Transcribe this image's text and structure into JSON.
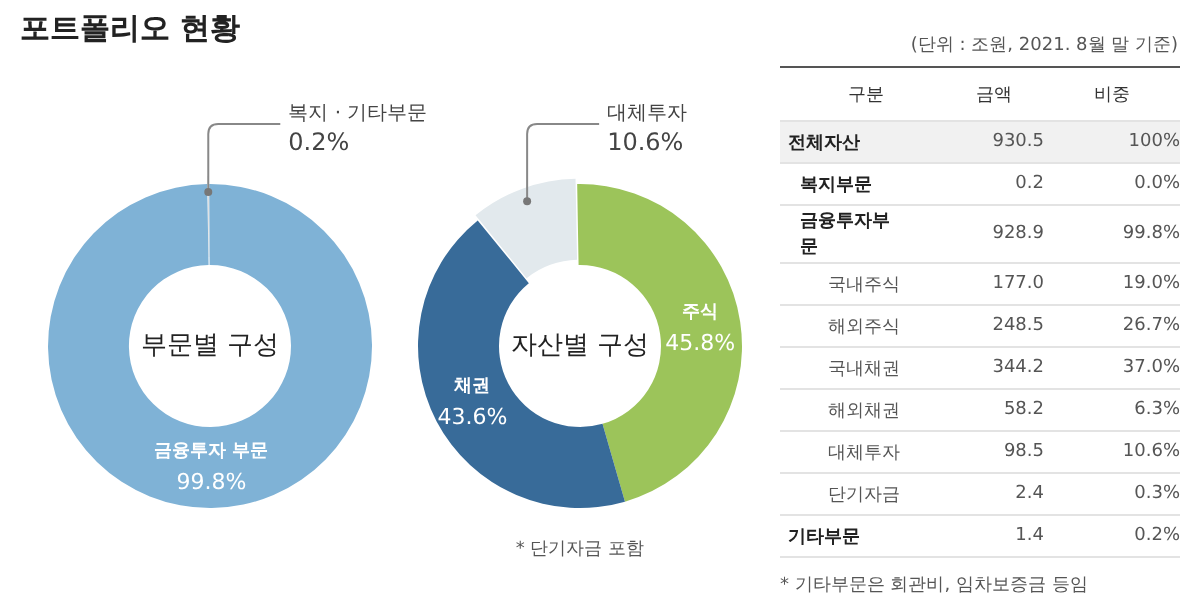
{
  "chart_data": [
    {
      "type": "donut",
      "title": "포트폴리오 현황",
      "subtitle": "부문별 구성",
      "categories": [
        "복지 · 기타부문",
        "금융투자 부문"
      ],
      "values": [
        0.2,
        99.8
      ],
      "colors": [
        "#cfd2d4",
        "#7fb2d6"
      ],
      "value_labels": [
        "0.2%",
        "99.8%"
      ],
      "legend": false
    },
    {
      "type": "donut",
      "subtitle": "자산별 구성",
      "categories": [
        "주식",
        "채권",
        "대체투자"
      ],
      "values": [
        45.8,
        43.6,
        10.6
      ],
      "colors": [
        "#9cc45a",
        "#386b99",
        "#e2e9ed"
      ],
      "value_labels": [
        "45.8%",
        "43.6%",
        "10.6%"
      ],
      "legend": false,
      "annotations": [
        "* 단기자금 포함"
      ]
    },
    {
      "type": "other",
      "legend_title": "구분",
      "categories": [
        "전체자산",
        "복지부문",
        "금융투자부문",
        "국내주식",
        "해외주식",
        "국내채권",
        "해외채권",
        "대체투자",
        "단기자금",
        "기타부문"
      ],
      "series": [
        {
          "name": "금액",
          "values": [
            930.5,
            0.2,
            928.9,
            177.0,
            248.5,
            344.2,
            58.2,
            98.5,
            2.4,
            1.4
          ],
          "value_labels": [
            "930.5",
            "0.2",
            "928.9",
            "177.0",
            "248.5",
            "344.2",
            "58.2",
            "98.5",
            "2.4",
            "1.4"
          ]
        },
        {
          "name": "비중",
          "values": [
            100,
            0.0,
            99.8,
            19.0,
            26.7,
            37.0,
            6.3,
            10.6,
            0.3,
            0.2
          ],
          "value_labels": [
            "100%",
            "0.0%",
            "99.8%",
            "19.0%",
            "26.7%",
            "37.0%",
            "6.3%",
            "10.6%",
            "0.3%",
            "0.2%"
          ]
        }
      ],
      "annotations": [
        "(단위 : 조원, 2021. 8월 말 기준)",
        "* 기타부문은 회관비, 임차보증금 등임"
      ]
    }
  ]
}
